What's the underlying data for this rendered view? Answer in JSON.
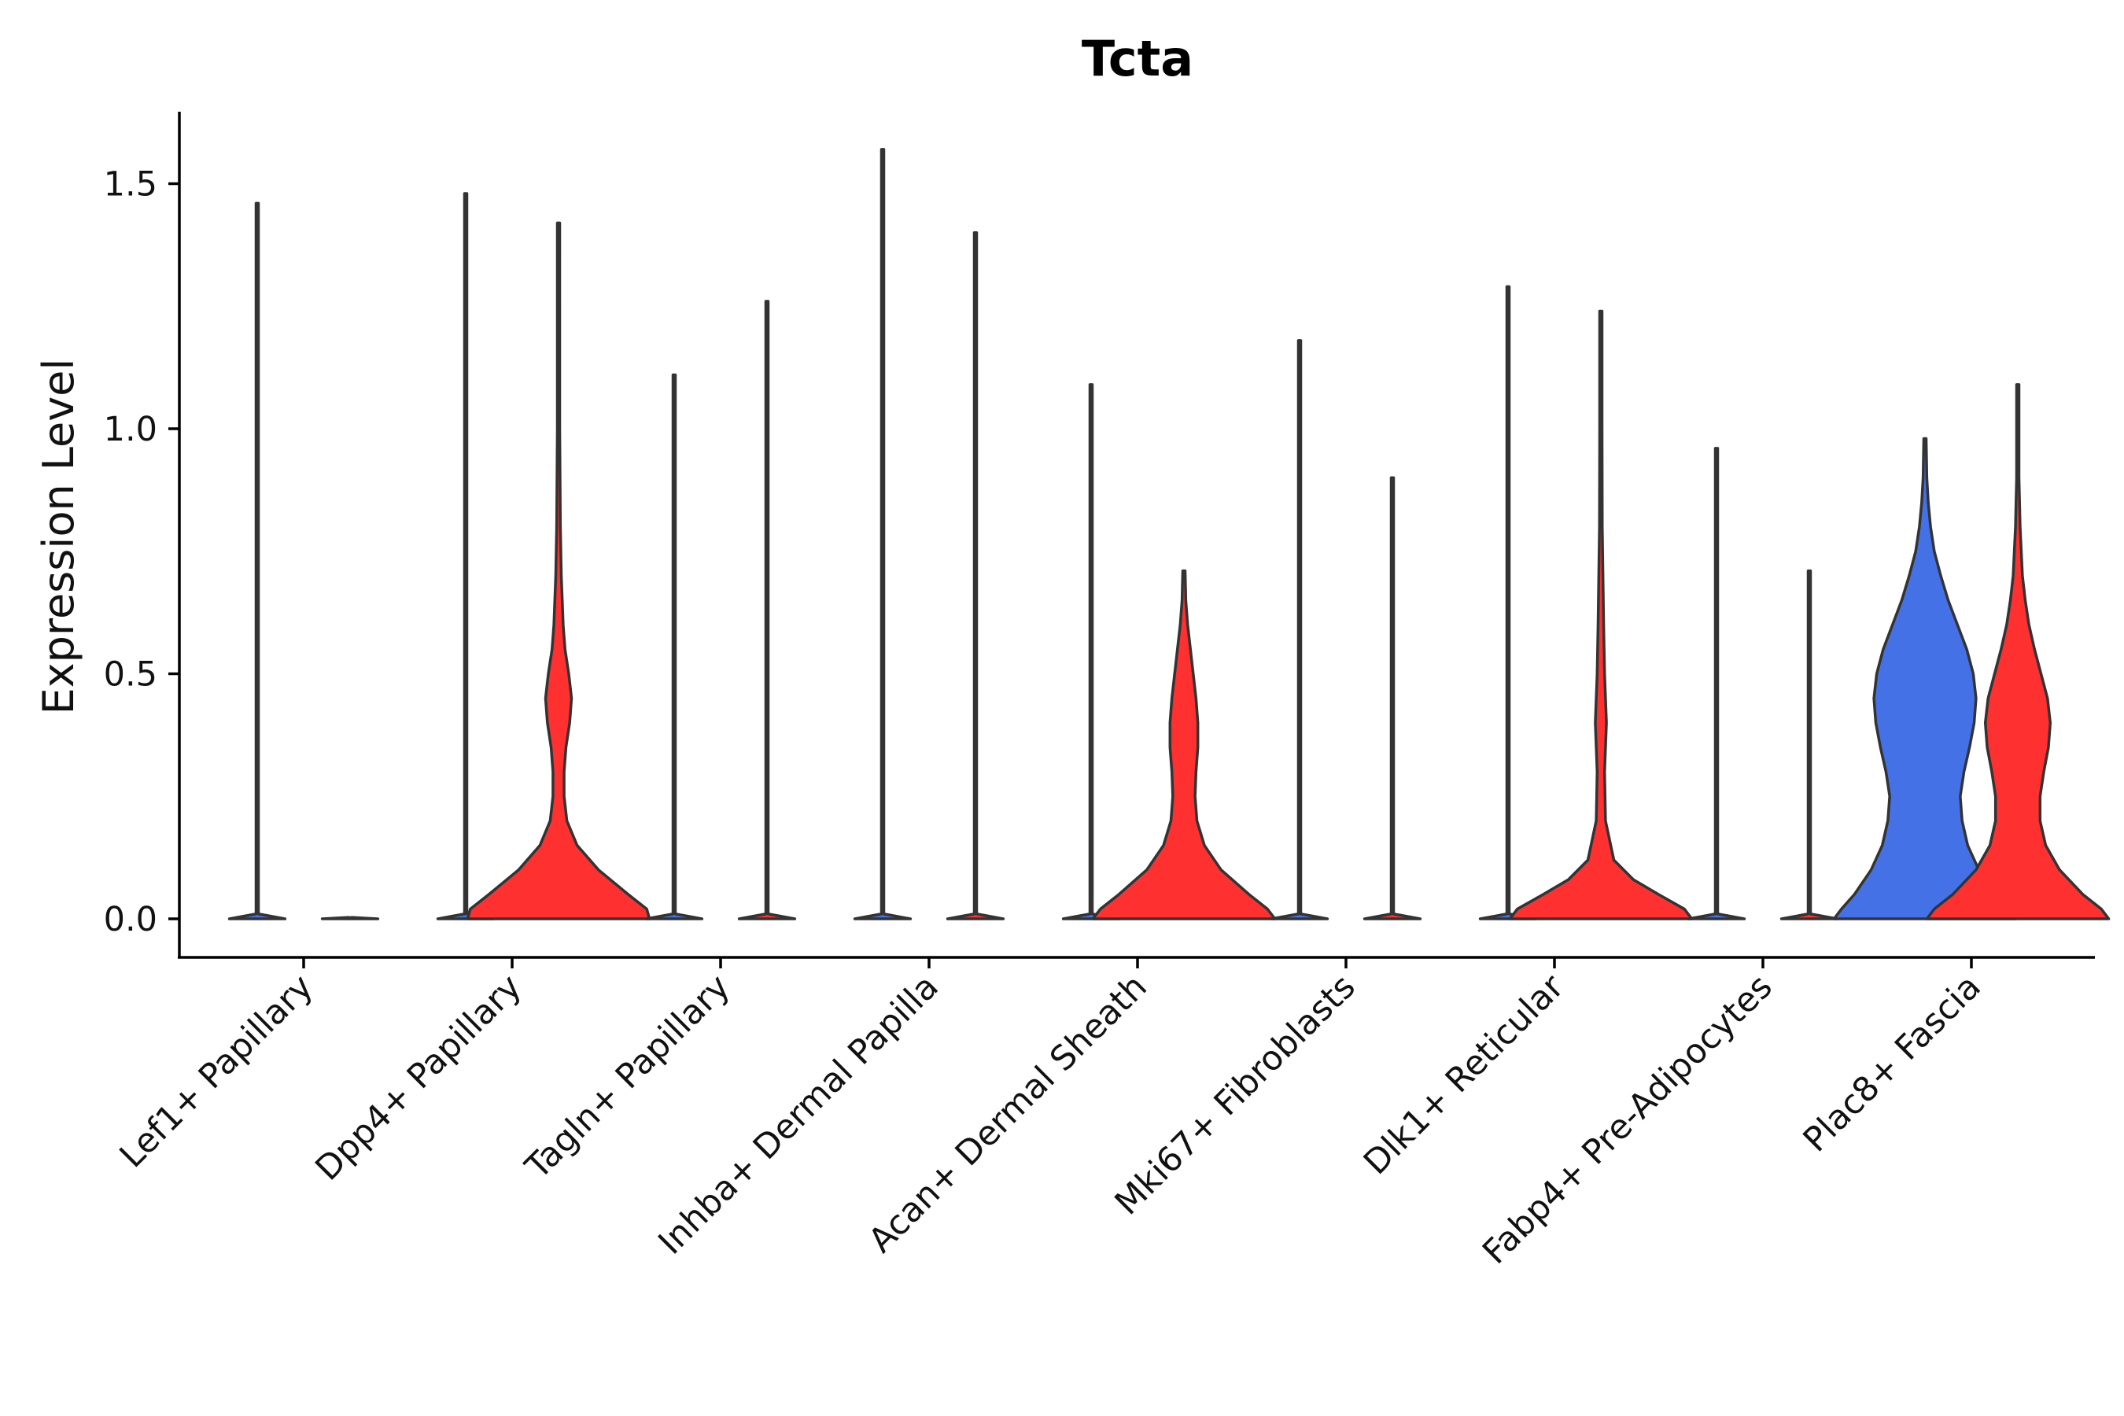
{
  "chart_data": {
    "type": "violin",
    "title": "Tcta",
    "xlabel": "",
    "ylabel": "Expression Level",
    "ylim": [
      -0.08,
      1.65
    ],
    "yticks": [
      0.0,
      0.5,
      1.0,
      1.5
    ],
    "ytick_labels": [
      "0.0",
      "0.5",
      "1.0",
      "1.5"
    ],
    "categories": [
      "Lef1+ Papillary",
      "Dpp4+ Papillary",
      "Tagln+ Papillary",
      "Inhba+ Dermal Papilla",
      "Acan+ Dermal Sheath",
      "Mki67+ Fibroblasts",
      "Dlk1+ Reticular",
      "Fabp4+ Pre-Adipocytes",
      "Plac8+ Fascia"
    ],
    "series_colors": {
      "left": "#4472e6",
      "right": "#ff3030"
    },
    "violins": [
      {
        "category": "Lef1+ Papillary",
        "side": "left",
        "color": "#4472e6",
        "max": 1.46,
        "profile": [
          [
            0.0,
            0.3
          ],
          [
            0.01,
            0.004
          ],
          [
            1.46,
            0.0
          ]
        ]
      },
      {
        "category": "Lef1+ Papillary",
        "side": "right",
        "color": "#ff3030",
        "max": 0.0,
        "profile": [
          [
            0.0,
            0.3
          ],
          [
            0.003,
            0.0
          ]
        ]
      },
      {
        "category": "Dpp4+ Papillary",
        "side": "left",
        "color": "#4472e6",
        "max": 1.48,
        "profile": [
          [
            0.0,
            0.3
          ],
          [
            0.01,
            0.004
          ],
          [
            1.48,
            0.0
          ]
        ]
      },
      {
        "category": "Dpp4+ Papillary",
        "side": "right",
        "color": "#ff3030",
        "max": 1.42,
        "profile": [
          [
            0.0,
            0.98
          ],
          [
            0.02,
            0.95
          ],
          [
            0.05,
            0.75
          ],
          [
            0.1,
            0.43
          ],
          [
            0.15,
            0.2
          ],
          [
            0.2,
            0.09
          ],
          [
            0.25,
            0.06
          ],
          [
            0.3,
            0.06
          ],
          [
            0.35,
            0.08
          ],
          [
            0.4,
            0.12
          ],
          [
            0.45,
            0.14
          ],
          [
            0.5,
            0.11
          ],
          [
            0.55,
            0.07
          ],
          [
            0.6,
            0.05
          ],
          [
            0.7,
            0.03
          ],
          [
            0.8,
            0.02
          ],
          [
            1.0,
            0.006
          ],
          [
            1.42,
            0.0
          ]
        ]
      },
      {
        "category": "Tagln+ Papillary",
        "side": "left",
        "color": "#4472e6",
        "max": 1.11,
        "profile": [
          [
            0.0,
            0.3
          ],
          [
            0.01,
            0.004
          ],
          [
            1.11,
            0.0
          ]
        ]
      },
      {
        "category": "Tagln+ Papillary",
        "side": "right",
        "color": "#ff3030",
        "max": 1.26,
        "profile": [
          [
            0.0,
            0.3
          ],
          [
            0.01,
            0.004
          ],
          [
            1.26,
            0.0
          ]
        ]
      },
      {
        "category": "Inhba+ Dermal Papilla",
        "side": "left",
        "color": "#4472e6",
        "max": 1.57,
        "profile": [
          [
            0.0,
            0.3
          ],
          [
            0.01,
            0.004
          ],
          [
            1.57,
            0.0
          ]
        ]
      },
      {
        "category": "Inhba+ Dermal Papilla",
        "side": "right",
        "color": "#ff3030",
        "max": 1.4,
        "profile": [
          [
            0.0,
            0.3
          ],
          [
            0.01,
            0.004
          ],
          [
            1.4,
            0.0
          ]
        ]
      },
      {
        "category": "Acan+ Dermal Sheath",
        "side": "left",
        "color": "#4472e6",
        "max": 1.09,
        "profile": [
          [
            0.0,
            0.3
          ],
          [
            0.01,
            0.004
          ],
          [
            1.09,
            0.0
          ]
        ]
      },
      {
        "category": "Acan+ Dermal Sheath",
        "side": "right",
        "color": "#ff3030",
        "max": 0.71,
        "profile": [
          [
            0.0,
            0.98
          ],
          [
            0.02,
            0.9
          ],
          [
            0.05,
            0.7
          ],
          [
            0.1,
            0.4
          ],
          [
            0.15,
            0.22
          ],
          [
            0.2,
            0.14
          ],
          [
            0.25,
            0.12
          ],
          [
            0.3,
            0.13
          ],
          [
            0.35,
            0.15
          ],
          [
            0.4,
            0.15
          ],
          [
            0.45,
            0.13
          ],
          [
            0.5,
            0.1
          ],
          [
            0.55,
            0.07
          ],
          [
            0.6,
            0.04
          ],
          [
            0.65,
            0.02
          ],
          [
            0.71,
            0.0
          ]
        ]
      },
      {
        "category": "Mki67+ Fibroblasts",
        "side": "left",
        "color": "#4472e6",
        "max": 1.18,
        "profile": [
          [
            0.0,
            0.3
          ],
          [
            0.01,
            0.004
          ],
          [
            1.18,
            0.0
          ]
        ]
      },
      {
        "category": "Mki67+ Fibroblasts",
        "side": "right",
        "color": "#ff3030",
        "max": 0.9,
        "profile": [
          [
            0.0,
            0.3
          ],
          [
            0.01,
            0.004
          ],
          [
            0.9,
            0.0
          ]
        ]
      },
      {
        "category": "Dlk1+ Reticular",
        "side": "left",
        "color": "#4472e6",
        "max": 1.29,
        "profile": [
          [
            0.0,
            0.3
          ],
          [
            0.01,
            0.004
          ],
          [
            1.29,
            0.0
          ]
        ]
      },
      {
        "category": "Dlk1+ Reticular",
        "side": "right",
        "color": "#ff3030",
        "max": 1.24,
        "profile": [
          [
            0.0,
            0.98
          ],
          [
            0.02,
            0.9
          ],
          [
            0.05,
            0.62
          ],
          [
            0.08,
            0.35
          ],
          [
            0.12,
            0.14
          ],
          [
            0.2,
            0.05
          ],
          [
            0.3,
            0.04
          ],
          [
            0.35,
            0.05
          ],
          [
            0.4,
            0.06
          ],
          [
            0.45,
            0.05
          ],
          [
            0.5,
            0.04
          ],
          [
            0.6,
            0.03
          ],
          [
            0.8,
            0.015
          ],
          [
            1.0,
            0.006
          ],
          [
            1.24,
            0.0
          ]
        ]
      },
      {
        "category": "Fabp4+ Pre-Adipocytes",
        "side": "left",
        "color": "#4472e6",
        "max": 0.96,
        "profile": [
          [
            0.0,
            0.3
          ],
          [
            0.01,
            0.004
          ],
          [
            0.96,
            0.0
          ]
        ]
      },
      {
        "category": "Fabp4+ Pre-Adipocytes",
        "side": "right",
        "color": "#ff3030",
        "max": 0.71,
        "profile": [
          [
            0.0,
            0.3
          ],
          [
            0.01,
            0.004
          ],
          [
            0.71,
            0.0
          ]
        ]
      },
      {
        "category": "Plac8+ Fascia",
        "side": "left",
        "color": "#4472e6",
        "max": 0.98,
        "profile": [
          [
            0.0,
            0.98
          ],
          [
            0.02,
            0.9
          ],
          [
            0.05,
            0.76
          ],
          [
            0.1,
            0.58
          ],
          [
            0.15,
            0.46
          ],
          [
            0.2,
            0.4
          ],
          [
            0.25,
            0.38
          ],
          [
            0.3,
            0.42
          ],
          [
            0.35,
            0.48
          ],
          [
            0.4,
            0.53
          ],
          [
            0.45,
            0.55
          ],
          [
            0.5,
            0.52
          ],
          [
            0.55,
            0.45
          ],
          [
            0.6,
            0.35
          ],
          [
            0.65,
            0.25
          ],
          [
            0.7,
            0.17
          ],
          [
            0.75,
            0.1
          ],
          [
            0.8,
            0.06
          ],
          [
            0.85,
            0.035
          ],
          [
            0.9,
            0.02
          ],
          [
            0.98,
            0.0
          ]
        ]
      },
      {
        "category": "Plac8+ Fascia",
        "side": "right",
        "color": "#ff3030",
        "max": 1.09,
        "profile": [
          [
            0.0,
            0.98
          ],
          [
            0.02,
            0.9
          ],
          [
            0.05,
            0.7
          ],
          [
            0.1,
            0.45
          ],
          [
            0.15,
            0.3
          ],
          [
            0.2,
            0.24
          ],
          [
            0.25,
            0.24
          ],
          [
            0.3,
            0.28
          ],
          [
            0.35,
            0.33
          ],
          [
            0.4,
            0.35
          ],
          [
            0.45,
            0.32
          ],
          [
            0.5,
            0.25
          ],
          [
            0.55,
            0.18
          ],
          [
            0.6,
            0.12
          ],
          [
            0.65,
            0.08
          ],
          [
            0.7,
            0.05
          ],
          [
            0.8,
            0.025
          ],
          [
            0.9,
            0.012
          ],
          [
            1.0,
            0.005
          ],
          [
            1.09,
            0.0
          ]
        ]
      }
    ]
  }
}
